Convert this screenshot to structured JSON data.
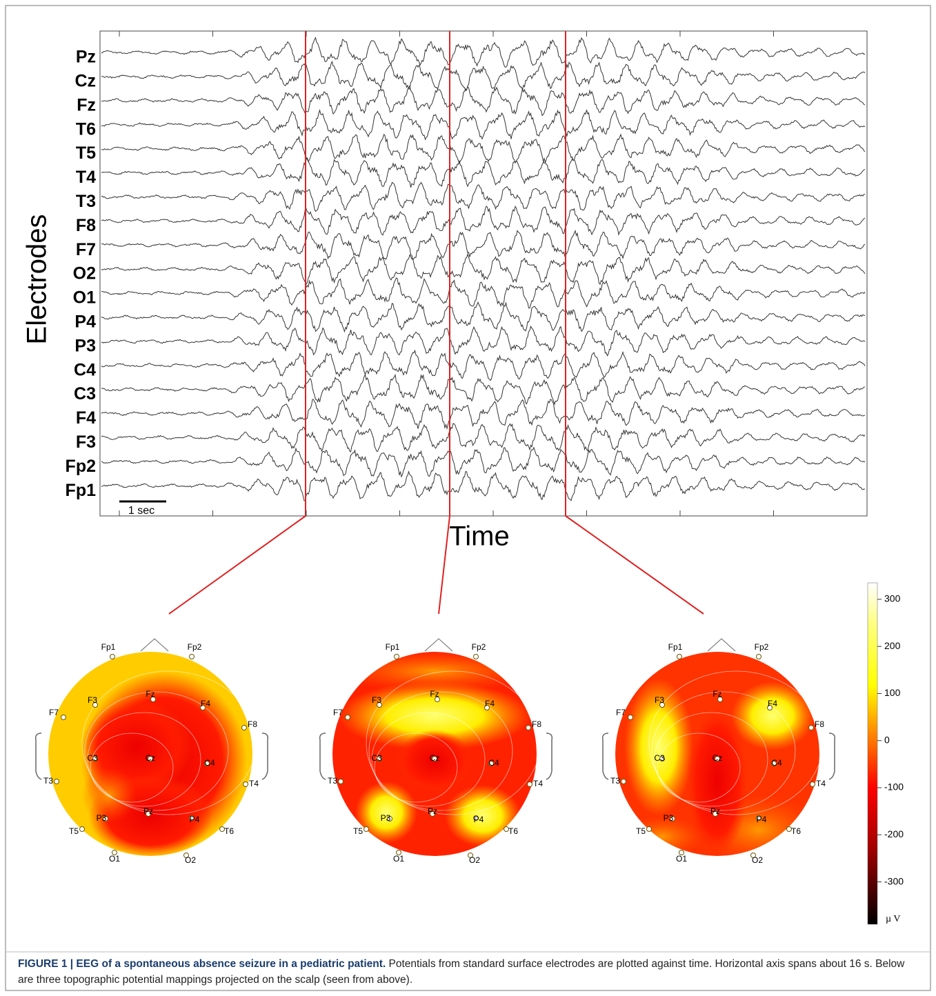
{
  "eeg": {
    "y_label": "Electrodes",
    "x_label": "Time",
    "scale_bar": "1 sec",
    "electrodes": [
      "Pz",
      "Cz",
      "Fz",
      "T6",
      "T5",
      "T4",
      "T3",
      "F8",
      "F7",
      "O2",
      "O1",
      "P4",
      "P3",
      "C4",
      "C3",
      "F4",
      "F3",
      "Fp2",
      "Fp1"
    ]
  },
  "topomaps": {
    "electrode_labels": [
      "Fp1",
      "Fp2",
      "F7",
      "F3",
      "Fz",
      "F4",
      "F8",
      "C3",
      "Cz",
      "C4",
      "T3",
      "T4",
      "T5",
      "P3",
      "Pz",
      "P4",
      "T6",
      "O1",
      "O2"
    ]
  },
  "colorbar": {
    "lim": [
      -390,
      335
    ],
    "ticks": [
      300,
      200,
      100,
      0,
      -100,
      -200,
      -300
    ],
    "unit": "µ V"
  },
  "caption": {
    "bold": "FIGURE 1 | EEG of a spontaneous absence seizure in a pediatric patient.",
    "text": "Potentials from standard surface electrodes are plotted against time. Horizontal axis spans about 16 s. Below are three topographic potential mappings projected on the scalp (seen from above)."
  }
}
